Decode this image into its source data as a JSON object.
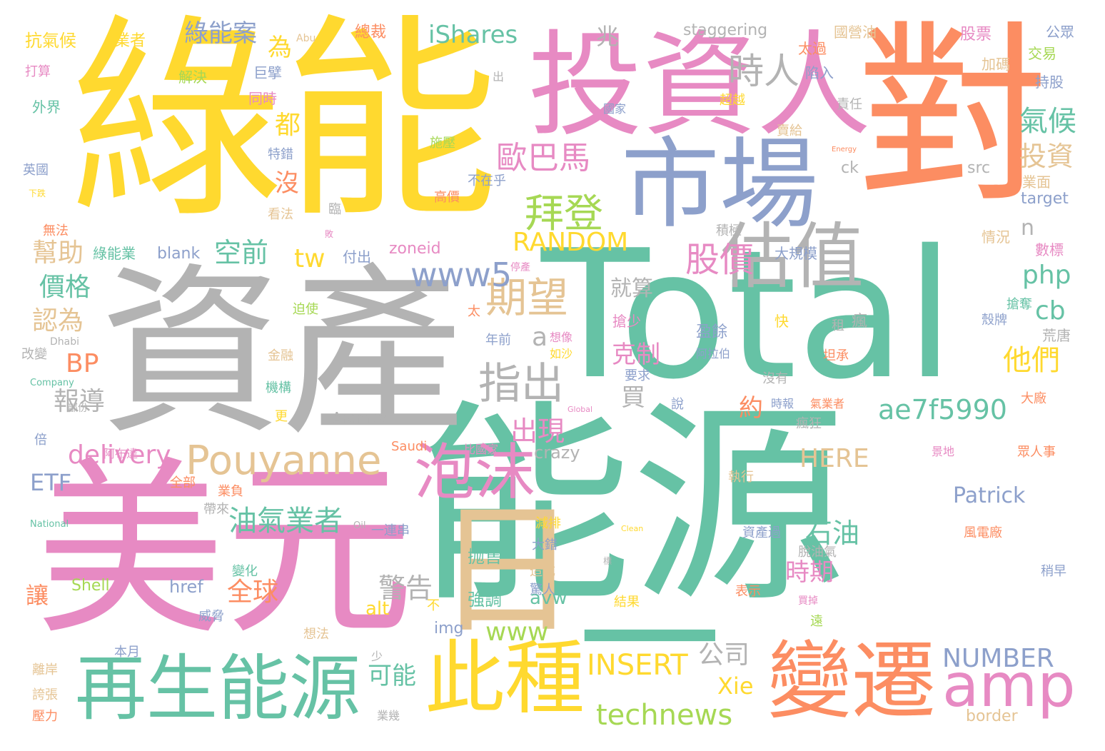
{
  "word_cloud": {
    "palette": {
      "green": "#66c2a5",
      "orange": "#fc8d62",
      "blue": "#8da0cb",
      "pink": "#e78ac3",
      "lime": "#a6d854",
      "yellow": "#ffd92f",
      "tan": "#e5c494",
      "gray": "#b3b3b3"
    },
    "words": [
      {
        "text": "能源",
        "color": "#66c2a5"
      },
      {
        "text": "Total",
        "color": "#66c2a5"
      },
      {
        "text": "資產",
        "color": "#b3b3b3"
      },
      {
        "text": "綠能",
        "color": "#ffd92f"
      },
      {
        "text": "美元",
        "color": "#e78ac3"
      },
      {
        "text": "對",
        "color": "#fc8d62"
      },
      {
        "text": "投資人",
        "color": "#e78ac3"
      },
      {
        "text": "市場",
        "color": "#8da0cb"
      },
      {
        "text": "日",
        "color": "#e5c494"
      },
      {
        "text": "一",
        "color": "#66c2a5"
      },
      {
        "text": "再生能源",
        "color": "#66c2a5"
      },
      {
        "text": "此種",
        "color": "#ffd92f"
      },
      {
        "text": "變遷",
        "color": "#fc8d62"
      },
      {
        "text": "估值",
        "color": "#b3b3b3"
      },
      {
        "text": "泡沫",
        "color": "#e78ac3"
      },
      {
        "text": "amp",
        "color": "#e78ac3"
      },
      {
        "text": "Pouyanne",
        "color": "#e5c494"
      },
      {
        "text": "期望",
        "color": "#e5c494"
      },
      {
        "text": "時人",
        "color": "#b3b3b3"
      },
      {
        "text": "拜登",
        "color": "#a6d854"
      },
      {
        "text": "歐巴馬",
        "color": "#e78ac3"
      },
      {
        "text": "股價",
        "color": "#e78ac3"
      },
      {
        "text": "指出",
        "color": "#b3b3b3"
      },
      {
        "text": "technews",
        "color": "#a6d854"
      },
      {
        "text": "ae7f5990",
        "color": "#66c2a5"
      },
      {
        "text": "www5",
        "color": "#8da0cb"
      },
      {
        "text": "www",
        "color": "#a6d854"
      },
      {
        "text": "油氣業者",
        "color": "#66c2a5"
      },
      {
        "text": "RANDOM",
        "color": "#ffd92f"
      },
      {
        "text": "delivery",
        "color": "#e78ac3"
      },
      {
        "text": "INSERT",
        "color": "#ffd92f"
      },
      {
        "text": "NUMBER",
        "color": "#8da0cb"
      },
      {
        "text": "HERE",
        "color": "#e5c494"
      },
      {
        "text": "iShares",
        "color": "#66c2a5"
      },
      {
        "text": "出現",
        "color": "#e78ac3"
      },
      {
        "text": "全球",
        "color": "#fc8d62"
      },
      {
        "text": "石油",
        "color": "#66c2a5"
      },
      {
        "text": "警告",
        "color": "#b3b3b3"
      },
      {
        "text": "氣候",
        "color": "#66c2a5"
      },
      {
        "text": "投資",
        "color": "#e5c494"
      },
      {
        "text": "他們",
        "color": "#ffd92f"
      },
      {
        "text": "報導",
        "color": "#b3b3b3"
      },
      {
        "text": "價格",
        "color": "#66c2a5"
      },
      {
        "text": "幫助",
        "color": "#e5c494"
      },
      {
        "text": "認為",
        "color": "#e5c494"
      },
      {
        "text": "空前",
        "color": "#66c2a5"
      },
      {
        "text": "綠能案",
        "color": "#8da0cb"
      },
      {
        "text": "可能",
        "color": "#66c2a5"
      },
      {
        "text": "公司",
        "color": "#b3b3b3"
      },
      {
        "text": "克制",
        "color": "#e78ac3"
      },
      {
        "text": "時期",
        "color": "#e78ac3"
      },
      {
        "text": "php",
        "color": "#66c2a5"
      },
      {
        "text": "BP",
        "color": "#fc8d62"
      },
      {
        "text": "ETF",
        "color": "#8da0cb"
      },
      {
        "text": "tw",
        "color": "#ffd92f"
      },
      {
        "text": "cb",
        "color": "#66c2a5"
      },
      {
        "text": "Patrick",
        "color": "#8da0cb"
      },
      {
        "text": "Xie",
        "color": "#ffd92f"
      },
      {
        "text": "就算",
        "color": "#b3b3b3"
      },
      {
        "text": "買",
        "color": "#b3b3b3"
      },
      {
        "text": "約",
        "color": "#fc8d62"
      },
      {
        "text": "a",
        "color": "#b3b3b3"
      },
      {
        "text": "n",
        "color": "#b3b3b3"
      },
      {
        "text": "為",
        "color": "#ffd92f"
      },
      {
        "text": "都",
        "color": "#ffd92f"
      },
      {
        "text": "沒",
        "color": "#fc8d62"
      },
      {
        "text": "兆",
        "color": "#b3b3b3"
      },
      {
        "text": "讓",
        "color": "#fc8d62"
      },
      {
        "text": "抛售",
        "color": "#66c2a5"
      },
      {
        "text": "強調",
        "color": "#66c2a5"
      },
      {
        "text": "alt",
        "color": "#ffd92f"
      },
      {
        "text": "avw",
        "color": "#66c2a5"
      },
      {
        "text": "href",
        "color": "#8da0cb"
      },
      {
        "text": "Shell",
        "color": "#a6d854"
      },
      {
        "text": "img",
        "color": "#8da0cb"
      },
      {
        "text": "crazy",
        "color": "#b3b3b3"
      },
      {
        "text": "border",
        "color": "#e5c494"
      },
      {
        "text": "blank",
        "color": "#8da0cb"
      },
      {
        "text": "zoneid",
        "color": "#e78ac3"
      },
      {
        "text": "target",
        "color": "#8da0cb"
      },
      {
        "text": "src",
        "color": "#b3b3b3"
      },
      {
        "text": "ck",
        "color": "#b3b3b3"
      },
      {
        "text": "Aramco",
        "color": "#b3b3b3"
      },
      {
        "text": "Saudi",
        "color": "#fc8d62"
      },
      {
        "text": "staggering",
        "color": "#b3b3b3"
      },
      {
        "text": "Abu",
        "color": "#e5c494"
      },
      {
        "text": "Dhabi",
        "color": "#b3b3b3"
      },
      {
        "text": "Company",
        "color": "#66c2a5"
      },
      {
        "text": "National",
        "color": "#66c2a5"
      },
      {
        "text": "Oil",
        "color": "#b3b3b3"
      },
      {
        "text": "Global",
        "color": "#e78ac3"
      },
      {
        "text": "Clean",
        "color": "#ffd92f"
      },
      {
        "text": "Energy",
        "color": "#fc8d62"
      },
      {
        "text": "抗氣候",
        "color": "#ffd92f"
      },
      {
        "text": "業者",
        "color": "#ffd92f"
      },
      {
        "text": "總裁",
        "color": "#fc8d62"
      },
      {
        "text": "國營油",
        "color": "#e5c494"
      },
      {
        "text": "股票",
        "color": "#e78ac3"
      },
      {
        "text": "公眾",
        "color": "#8da0cb"
      },
      {
        "text": "打算",
        "color": "#e78ac3"
      },
      {
        "text": "解決",
        "color": "#a6d854"
      },
      {
        "text": "巨擘",
        "color": "#8da0cb"
      },
      {
        "text": "陷入",
        "color": "#8da0cb"
      },
      {
        "text": "太過",
        "color": "#fc8d62"
      },
      {
        "text": "加碼",
        "color": "#e5c494"
      },
      {
        "text": "交易",
        "color": "#a6d854"
      },
      {
        "text": "持股",
        "color": "#8da0cb"
      },
      {
        "text": "外界",
        "color": "#66c2a5"
      },
      {
        "text": "同時",
        "color": "#e78ac3"
      },
      {
        "text": "超越",
        "color": "#ffd92f"
      },
      {
        "text": "國家",
        "color": "#8da0cb"
      },
      {
        "text": "責任",
        "color": "#b3b3b3"
      },
      {
        "text": "賣給",
        "color": "#e5c494"
      },
      {
        "text": "特錯",
        "color": "#8da0cb"
      },
      {
        "text": "施壓",
        "color": "#a6d854"
      },
      {
        "text": "英國",
        "color": "#8da0cb"
      },
      {
        "text": "不在乎",
        "color": "#8da0cb"
      },
      {
        "text": "高價",
        "color": "#fc8d62"
      },
      {
        "text": "業面",
        "color": "#e5c494"
      },
      {
        "text": "下跌",
        "color": "#ffd92f"
      },
      {
        "text": "看法",
        "color": "#e5c494"
      },
      {
        "text": "臨",
        "color": "#b3b3b3"
      },
      {
        "text": "無法",
        "color": "#fc8d62"
      },
      {
        "text": "積極",
        "color": "#b3b3b3"
      },
      {
        "text": "情況",
        "color": "#e5c494"
      },
      {
        "text": "綠能業",
        "color": "#66c2a5"
      },
      {
        "text": "付出",
        "color": "#8da0cb"
      },
      {
        "text": "大規模",
        "color": "#8da0cb"
      },
      {
        "text": "數標",
        "color": "#e78ac3"
      },
      {
        "text": "停產",
        "color": "#e78ac3"
      },
      {
        "text": "迫使",
        "color": "#a6d854"
      },
      {
        "text": "搶奪",
        "color": "#66c2a5"
      },
      {
        "text": "太",
        "color": "#fc8d62"
      },
      {
        "text": "搶少",
        "color": "#e78ac3"
      },
      {
        "text": "快",
        "color": "#ffd92f"
      },
      {
        "text": "租",
        "color": "#b3b3b3"
      },
      {
        "text": "瘋",
        "color": "#b3b3b3"
      },
      {
        "text": "殼牌",
        "color": "#8da0cb"
      },
      {
        "text": "盈餘",
        "color": "#8da0cb"
      },
      {
        "text": "阿拉伯",
        "color": "#8da0cb"
      },
      {
        "text": "荒唐",
        "color": "#b3b3b3"
      },
      {
        "text": "改變",
        "color": "#b3b3b3"
      },
      {
        "text": "年前",
        "color": "#8da0cb"
      },
      {
        "text": "想像",
        "color": "#e78ac3"
      },
      {
        "text": "如沙",
        "color": "#ffd92f"
      },
      {
        "text": "金融",
        "color": "#e5c494"
      },
      {
        "text": "坦承",
        "color": "#fc8d62"
      },
      {
        "text": "要求",
        "color": "#8da0cb"
      },
      {
        "text": "沒有",
        "color": "#b3b3b3"
      },
      {
        "text": "大廠",
        "color": "#fc8d62"
      },
      {
        "text": "機構",
        "color": "#66c2a5"
      },
      {
        "text": "說",
        "color": "#8da0cb"
      },
      {
        "text": "時報",
        "color": "#8da0cb"
      },
      {
        "text": "氣業者",
        "color": "#fc8d62"
      },
      {
        "text": "更",
        "color": "#ffd92f"
      },
      {
        "text": "部份",
        "color": "#b3b3b3"
      },
      {
        "text": "瘋狂",
        "color": "#b3b3b3"
      },
      {
        "text": "倍",
        "color": "#8da0cb"
      },
      {
        "text": "比國家",
        "color": "#e78ac3"
      },
      {
        "text": "眾人事",
        "color": "#fc8d62"
      },
      {
        "text": "景地",
        "color": "#e78ac3"
      },
      {
        "text": "阿布達",
        "color": "#e78ac3"
      },
      {
        "text": "全部",
        "color": "#fc8d62"
      },
      {
        "text": "業負",
        "color": "#fc8d62"
      },
      {
        "text": "執行",
        "color": "#e5c494"
      },
      {
        "text": "帶來",
        "color": "#b3b3b3"
      },
      {
        "text": "一連串",
        "color": "#8da0cb"
      },
      {
        "text": "減排",
        "color": "#ffd92f"
      },
      {
        "text": "資產過",
        "color": "#8da0cb"
      },
      {
        "text": "風電廠",
        "color": "#fc8d62"
      },
      {
        "text": "大錯",
        "color": "#8da0cb"
      },
      {
        "text": "脫油氣",
        "color": "#b3b3b3"
      },
      {
        "text": "變化",
        "color": "#66c2a5"
      },
      {
        "text": "造成",
        "color": "#e5c494"
      },
      {
        "text": "稍早",
        "color": "#8da0cb"
      },
      {
        "text": "驚人",
        "color": "#8da0cb"
      },
      {
        "text": "結果",
        "color": "#ffd92f"
      },
      {
        "text": "表示",
        "color": "#fc8d62"
      },
      {
        "text": "買掉",
        "color": "#e78ac3"
      },
      {
        "text": "威脅",
        "color": "#8da0cb"
      },
      {
        "text": "不",
        "color": "#ffd92f"
      },
      {
        "text": "遠",
        "color": "#a6d854"
      },
      {
        "text": "想法",
        "color": "#e5c494"
      },
      {
        "text": "本月",
        "color": "#8da0cb"
      },
      {
        "text": "少",
        "color": "#b3b3b3"
      },
      {
        "text": "離岸",
        "color": "#e5c494"
      },
      {
        "text": "誇張",
        "color": "#e5c494"
      },
      {
        "text": "壓力",
        "color": "#fc8d62"
      },
      {
        "text": "業幾",
        "color": "#b3b3b3"
      },
      {
        "text": "出",
        "color": "#b3b3b3"
      },
      {
        "text": "標",
        "color": "#b3b3b3"
      },
      {
        "text": "敗",
        "color": "#e78ac3"
      }
    ]
  }
}
